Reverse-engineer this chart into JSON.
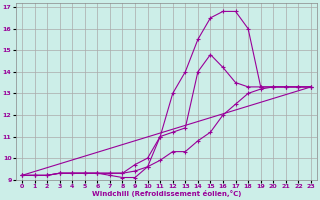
{
  "xlabel": "Windchill (Refroidissement éolien,°C)",
  "background_color": "#cceee8",
  "grid_color": "#aaaaaa",
  "line_color": "#990099",
  "xlim": [
    -0.5,
    23.5
  ],
  "ylim": [
    9,
    17.2
  ],
  "xticks": [
    0,
    1,
    2,
    3,
    4,
    5,
    6,
    7,
    8,
    9,
    10,
    11,
    12,
    13,
    14,
    15,
    16,
    17,
    18,
    19,
    20,
    21,
    22,
    23
  ],
  "yticks": [
    9,
    10,
    11,
    12,
    13,
    14,
    15,
    16,
    17
  ],
  "series": [
    {
      "x": [
        0,
        23
      ],
      "y": [
        9.2,
        13.3
      ],
      "marker": false
    },
    {
      "x": [
        0,
        1,
        2,
        3,
        4,
        5,
        6,
        7,
        8,
        9,
        10,
        11,
        12,
        13,
        14,
        15,
        16,
        17,
        18,
        19,
        20,
        21,
        22,
        23
      ],
      "y": [
        9.2,
        9.2,
        9.2,
        9.3,
        9.3,
        9.3,
        9.3,
        9.3,
        9.3,
        9.4,
        9.6,
        9.9,
        10.3,
        10.3,
        10.8,
        11.2,
        12.0,
        12.5,
        13.0,
        13.2,
        13.3,
        13.3,
        13.3,
        13.3
      ],
      "marker": true
    },
    {
      "x": [
        0,
        1,
        2,
        3,
        4,
        5,
        6,
        7,
        8,
        9,
        10,
        11,
        12,
        13,
        14,
        15,
        16,
        17,
        18,
        19,
        20,
        21,
        22,
        23
      ],
      "y": [
        9.2,
        9.2,
        9.2,
        9.3,
        9.3,
        9.3,
        9.3,
        9.2,
        9.1,
        9.1,
        9.6,
        11.0,
        13.0,
        14.0,
        15.5,
        16.5,
        16.8,
        16.8,
        16.0,
        13.3,
        13.3,
        13.3,
        13.3,
        13.3
      ],
      "marker": true
    },
    {
      "x": [
        0,
        1,
        2,
        3,
        4,
        5,
        6,
        7,
        8,
        9,
        10,
        11,
        12,
        13,
        14,
        15,
        16,
        17,
        18,
        19,
        20,
        21,
        22,
        23
      ],
      "y": [
        9.2,
        9.2,
        9.2,
        9.3,
        9.3,
        9.3,
        9.3,
        9.3,
        9.3,
        9.7,
        10.0,
        11.0,
        11.2,
        11.4,
        14.0,
        14.8,
        14.2,
        13.5,
        13.3,
        13.3,
        13.3,
        13.3,
        13.3,
        13.3
      ],
      "marker": true
    }
  ]
}
